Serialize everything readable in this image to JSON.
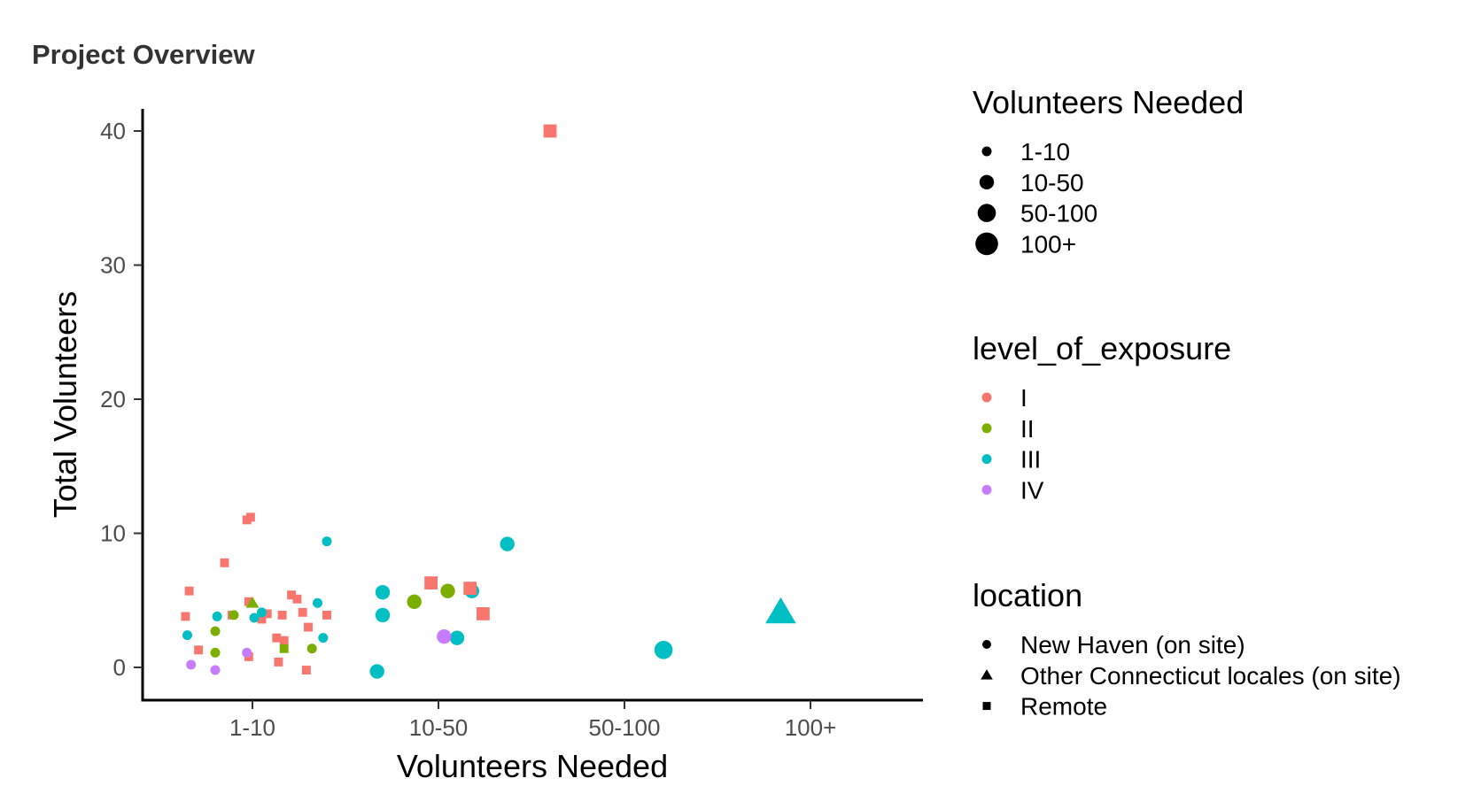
{
  "chart_data": {
    "type": "scatter",
    "title": "Project Overview",
    "xlabel": "Volunteers Needed",
    "ylabel": "Total Volunteers",
    "x_categories": [
      "1-10",
      "10-50",
      "50-100",
      "100+"
    ],
    "y_ticks": [
      0,
      10,
      20,
      30,
      40
    ],
    "ylim": [
      -2.5,
      42
    ],
    "grid": false,
    "legend_position": "right",
    "colors": {
      "I": "#F8766D",
      "II": "#7CAE00",
      "III": "#00BFC4",
      "IV": "#C77CFF"
    },
    "legends": [
      {
        "title": "Volunteers Needed",
        "kind": "size",
        "items": [
          "1-10",
          "10-50",
          "50-100",
          "100+"
        ]
      },
      {
        "title": "level_of_exposure",
        "kind": "color",
        "items": [
          "I",
          "II",
          "III",
          "IV"
        ]
      },
      {
        "title": "location",
        "kind": "shape",
        "items": [
          "New Haven (on site)",
          "Other Connecticut locales (on site)",
          "Remote"
        ]
      }
    ],
    "points": [
      {
        "x": "1-10",
        "offset": -0.36,
        "y": 3.8,
        "exposure": "I",
        "location": "Remote"
      },
      {
        "x": "1-10",
        "offset": -0.34,
        "y": 5.7,
        "exposure": "I",
        "location": "Remote"
      },
      {
        "x": "1-10",
        "offset": -0.29,
        "y": 1.3,
        "exposure": "I",
        "location": "Remote"
      },
      {
        "x": "1-10",
        "offset": -0.15,
        "y": 7.8,
        "exposure": "I",
        "location": "Remote"
      },
      {
        "x": "1-10",
        "offset": -0.11,
        "y": 3.9,
        "exposure": "I",
        "location": "Remote"
      },
      {
        "x": "1-10",
        "offset": -0.03,
        "y": 11.0,
        "exposure": "I",
        "location": "Remote"
      },
      {
        "x": "1-10",
        "offset": -0.01,
        "y": 11.2,
        "exposure": "I",
        "location": "Remote"
      },
      {
        "x": "1-10",
        "offset": -0.02,
        "y": 4.9,
        "exposure": "I",
        "location": "Remote"
      },
      {
        "x": "1-10",
        "offset": -0.02,
        "y": 0.8,
        "exposure": "I",
        "location": "Remote"
      },
      {
        "x": "1-10",
        "offset": 0.05,
        "y": 3.6,
        "exposure": "I",
        "location": "Remote"
      },
      {
        "x": "1-10",
        "offset": 0.08,
        "y": 4.0,
        "exposure": "I",
        "location": "Remote"
      },
      {
        "x": "1-10",
        "offset": 0.13,
        "y": 2.2,
        "exposure": "I",
        "location": "Remote"
      },
      {
        "x": "1-10",
        "offset": 0.14,
        "y": 0.4,
        "exposure": "I",
        "location": "Remote"
      },
      {
        "x": "1-10",
        "offset": 0.16,
        "y": 3.9,
        "exposure": "I",
        "location": "Remote"
      },
      {
        "x": "1-10",
        "offset": 0.17,
        "y": 2.0,
        "exposure": "I",
        "location": "Remote"
      },
      {
        "x": "1-10",
        "offset": 0.21,
        "y": 5.4,
        "exposure": "I",
        "location": "Remote"
      },
      {
        "x": "1-10",
        "offset": 0.24,
        "y": 5.1,
        "exposure": "I",
        "location": "Remote"
      },
      {
        "x": "1-10",
        "offset": 0.27,
        "y": 4.1,
        "exposure": "I",
        "location": "Remote"
      },
      {
        "x": "1-10",
        "offset": 0.3,
        "y": 3.0,
        "exposure": "I",
        "location": "Remote"
      },
      {
        "x": "1-10",
        "offset": 0.29,
        "y": -0.2,
        "exposure": "I",
        "location": "Remote"
      },
      {
        "x": "1-10",
        "offset": 0.4,
        "y": 3.9,
        "exposure": "I",
        "location": "Remote"
      },
      {
        "x": "1-10",
        "offset": 0.17,
        "y": 1.4,
        "exposure": "II",
        "location": "Remote"
      },
      {
        "x": "1-10",
        "offset": 0.32,
        "y": 1.4,
        "exposure": "II",
        "location": "New Haven (on site)"
      },
      {
        "x": "1-10",
        "offset": -0.2,
        "y": 2.7,
        "exposure": "II",
        "location": "New Haven (on site)"
      },
      {
        "x": "1-10",
        "offset": -0.2,
        "y": 1.1,
        "exposure": "II",
        "location": "New Haven (on site)"
      },
      {
        "x": "1-10",
        "offset": -0.1,
        "y": 3.9,
        "exposure": "II",
        "location": "New Haven (on site)"
      },
      {
        "x": "1-10",
        "offset": 0.0,
        "y": 4.8,
        "exposure": "II",
        "location": "Other Connecticut locales (on site)"
      },
      {
        "x": "1-10",
        "offset": -0.35,
        "y": 2.4,
        "exposure": "III",
        "location": "New Haven (on site)"
      },
      {
        "x": "1-10",
        "offset": -0.19,
        "y": 3.8,
        "exposure": "III",
        "location": "New Haven (on site)"
      },
      {
        "x": "1-10",
        "offset": 0.01,
        "y": 3.7,
        "exposure": "III",
        "location": "New Haven (on site)"
      },
      {
        "x": "1-10",
        "offset": 0.05,
        "y": 4.1,
        "exposure": "III",
        "location": "New Haven (on site)"
      },
      {
        "x": "1-10",
        "offset": 0.35,
        "y": 4.8,
        "exposure": "III",
        "location": "New Haven (on site)"
      },
      {
        "x": "1-10",
        "offset": 0.38,
        "y": 2.2,
        "exposure": "III",
        "location": "New Haven (on site)"
      },
      {
        "x": "1-10",
        "offset": 0.4,
        "y": 9.4,
        "exposure": "III",
        "location": "New Haven (on site)"
      },
      {
        "x": "1-10",
        "offset": -0.33,
        "y": 0.2,
        "exposure": "IV",
        "location": "New Haven (on site)"
      },
      {
        "x": "1-10",
        "offset": -0.2,
        "y": -0.2,
        "exposure": "IV",
        "location": "New Haven (on site)"
      },
      {
        "x": "1-10",
        "offset": -0.03,
        "y": 1.1,
        "exposure": "IV",
        "location": "New Haven (on site)"
      },
      {
        "x": "10-50",
        "offset": -0.33,
        "y": -0.3,
        "exposure": "III",
        "location": "New Haven (on site)"
      },
      {
        "x": "10-50",
        "offset": -0.3,
        "y": 3.9,
        "exposure": "III",
        "location": "New Haven (on site)"
      },
      {
        "x": "10-50",
        "offset": -0.3,
        "y": 5.6,
        "exposure": "III",
        "location": "New Haven (on site)"
      },
      {
        "x": "10-50",
        "offset": 0.18,
        "y": 5.7,
        "exposure": "III",
        "location": "New Haven (on site)"
      },
      {
        "x": "10-50",
        "offset": 0.1,
        "y": 2.2,
        "exposure": "III",
        "location": "New Haven (on site)"
      },
      {
        "x": "10-50",
        "offset": 0.37,
        "y": 9.2,
        "exposure": "III",
        "location": "New Haven (on site)"
      },
      {
        "x": "10-50",
        "offset": -0.13,
        "y": 4.9,
        "exposure": "II",
        "location": "New Haven (on site)"
      },
      {
        "x": "10-50",
        "offset": 0.05,
        "y": 5.7,
        "exposure": "II",
        "location": "New Haven (on site)"
      },
      {
        "x": "10-50",
        "offset": 0.03,
        "y": 2.3,
        "exposure": "IV",
        "location": "New Haven (on site)"
      },
      {
        "x": "10-50",
        "offset": -0.04,
        "y": 6.3,
        "exposure": "I",
        "location": "Remote"
      },
      {
        "x": "10-50",
        "offset": 0.17,
        "y": 5.9,
        "exposure": "I",
        "location": "Remote"
      },
      {
        "x": "10-50",
        "offset": 0.24,
        "y": 4.0,
        "exposure": "I",
        "location": "Remote"
      },
      {
        "x": "10-50",
        "offset": 0.6,
        "y": 40.0,
        "exposure": "I",
        "location": "Remote"
      },
      {
        "x": "50-100",
        "offset": 0.21,
        "y": 1.3,
        "exposure": "III",
        "location": "New Haven (on site)"
      },
      {
        "x": "100+",
        "offset": -0.16,
        "y": 4.1,
        "exposure": "III",
        "location": "Other Connecticut locales (on site)"
      }
    ]
  }
}
